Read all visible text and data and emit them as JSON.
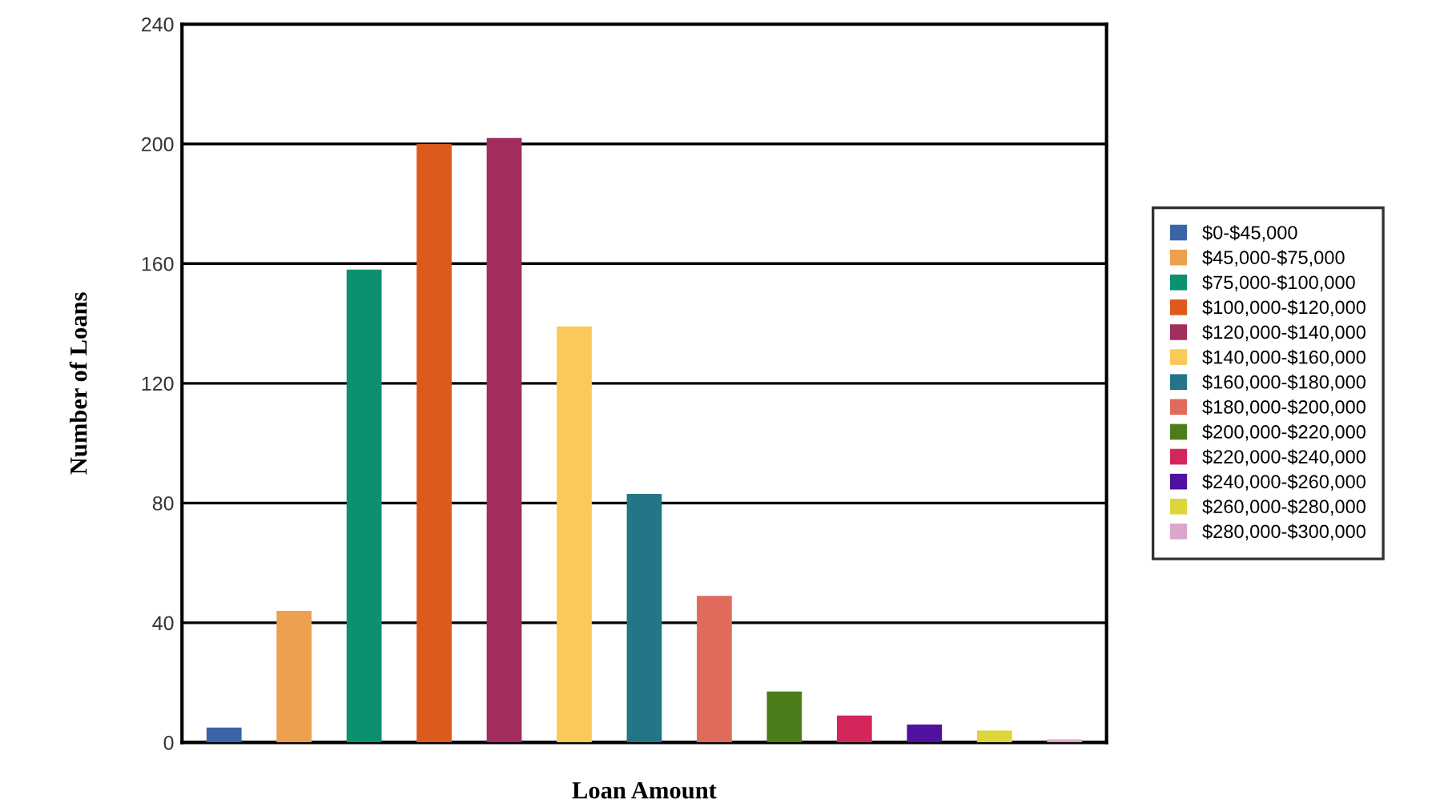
{
  "chart_data": {
    "type": "bar",
    "xlabel": "Loan Amount",
    "ylabel": "Number of Loans",
    "categories": [
      null,
      null,
      null,
      null,
      null,
      null,
      null,
      null,
      null,
      null,
      null,
      null,
      null
    ],
    "series": [
      {
        "name": "$0-$45,000",
        "color": "#3a64a8",
        "values": [
          5,
          null,
          null,
          null,
          null,
          null,
          null,
          null,
          null,
          null,
          null,
          null,
          null
        ]
      },
      {
        "name": "$45,000-$75,000",
        "color": "#eda04f",
        "values": [
          null,
          44,
          null,
          null,
          null,
          null,
          null,
          null,
          null,
          null,
          null,
          null,
          null
        ]
      },
      {
        "name": "$75,000-$100,000",
        "color": "#0b9070",
        "values": [
          null,
          null,
          158,
          null,
          null,
          null,
          null,
          null,
          null,
          null,
          null,
          null,
          null
        ]
      },
      {
        "name": "$100,000-$120,000",
        "color": "#de5a1c",
        "values": [
          null,
          null,
          null,
          200,
          null,
          null,
          null,
          null,
          null,
          null,
          null,
          null,
          null
        ]
      },
      {
        "name": "$120,000-$140,000",
        "color": "#a32d5e",
        "values": [
          null,
          null,
          null,
          null,
          202,
          null,
          null,
          null,
          null,
          null,
          null,
          null,
          null
        ]
      },
      {
        "name": "$140,000-$160,000",
        "color": "#fac95a",
        "values": [
          null,
          null,
          null,
          null,
          null,
          139,
          null,
          null,
          null,
          null,
          null,
          null,
          null
        ]
      },
      {
        "name": "$160,000-$180,000",
        "color": "#237587",
        "values": [
          null,
          null,
          null,
          null,
          null,
          null,
          83,
          null,
          null,
          null,
          null,
          null,
          null
        ]
      },
      {
        "name": "$180,000-$200,000",
        "color": "#e06b5c",
        "values": [
          null,
          null,
          null,
          null,
          null,
          null,
          null,
          49,
          null,
          null,
          null,
          null,
          null
        ]
      },
      {
        "name": "$200,000-$220,000",
        "color": "#4c7d1a",
        "values": [
          null,
          null,
          null,
          null,
          null,
          null,
          null,
          null,
          17,
          null,
          null,
          null,
          null
        ]
      },
      {
        "name": "$220,000-$240,000",
        "color": "#d3265a",
        "values": [
          null,
          null,
          null,
          null,
          null,
          null,
          null,
          null,
          null,
          9,
          null,
          null,
          null
        ]
      },
      {
        "name": "$240,000-$260,000",
        "color": "#5010a0",
        "values": [
          null,
          null,
          null,
          null,
          null,
          null,
          null,
          null,
          null,
          null,
          6,
          null,
          null
        ]
      },
      {
        "name": "$260,000-$280,000",
        "color": "#dcd63a",
        "values": [
          null,
          null,
          null,
          null,
          null,
          null,
          null,
          null,
          null,
          null,
          null,
          4,
          null
        ]
      },
      {
        "name": "$280,000-$300,000",
        "color": "#dca6cc",
        "values": [
          null,
          null,
          null,
          null,
          null,
          null,
          null,
          null,
          null,
          null,
          null,
          null,
          1
        ]
      }
    ],
    "ylim": [
      0,
      240
    ],
    "yticks": [
      0,
      40,
      80,
      120,
      160,
      200,
      240
    ],
    "grid": "y",
    "legend": "right"
  }
}
